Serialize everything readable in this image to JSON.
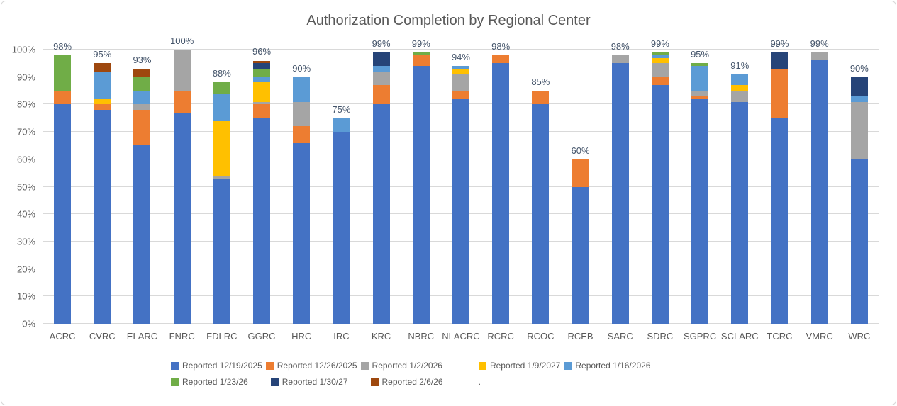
{
  "chart_data": {
    "type": "bar",
    "subtype": "stacked-column",
    "title": "Authorization Completion by Regional Center",
    "categories": [
      "ACRC",
      "CVRC",
      "ELARC",
      "FNRC",
      "FDLRC",
      "GGRC",
      "HRC",
      "IRC",
      "KRC",
      "NBRC",
      "NLACRC",
      "RCRC",
      "RCOC",
      "RCEB",
      "SARC",
      "SDRC",
      "SGPRC",
      "SCLARC",
      "TCRC",
      "VMRC",
      "WRC"
    ],
    "totals": [
      98,
      95,
      93,
      100,
      88,
      96,
      90,
      75,
      99,
      99,
      94,
      98,
      85,
      60,
      98,
      99,
      95,
      91,
      99,
      99,
      90
    ],
    "totals_labels": [
      "98%",
      "95%",
      "93%",
      "100%",
      "88%",
      "96%",
      "90%",
      "75%",
      "99%",
      "99%",
      "94%",
      "98%",
      "85%",
      "60%",
      "98%",
      "99%",
      "95%",
      "91%",
      "99%",
      "99%",
      "90%"
    ],
    "series": [
      {
        "name": "Reported 12/19/2025",
        "color": "#4472C4",
        "values": [
          80,
          78,
          65,
          77,
          53,
          75,
          66,
          70,
          80,
          94,
          82,
          95,
          80,
          50,
          95,
          87,
          82,
          81,
          75,
          96,
          60
        ]
      },
      {
        "name": "Reported 12/26/2025",
        "color": "#ED7D31",
        "values": [
          5,
          2,
          13,
          8,
          0,
          5,
          6,
          0,
          7,
          4,
          3,
          3,
          5,
          10,
          0,
          3,
          1,
          0,
          18,
          0,
          0
        ]
      },
      {
        "name": "Reported 1/2/2026",
        "color": "#A5A5A5",
        "values": [
          0,
          0,
          2,
          15,
          1,
          1,
          9,
          0,
          5,
          0,
          6,
          0,
          0,
          0,
          3,
          5,
          2,
          4,
          0,
          3,
          21
        ]
      },
      {
        "name": "Reported 1/9/2027",
        "color": "#FFC000",
        "values": [
          0,
          2,
          0,
          0,
          20,
          7,
          0,
          0,
          0,
          0,
          2,
          0,
          0,
          0,
          0,
          2,
          0,
          2,
          0,
          0,
          0
        ]
      },
      {
        "name": "Reported 1/16/2026",
        "color": "#5B9BD5",
        "values": [
          0,
          10,
          5,
          0,
          10,
          2,
          9,
          5,
          2,
          0,
          1,
          0,
          0,
          0,
          0,
          1,
          9,
          4,
          0,
          0,
          2
        ]
      },
      {
        "name": "Reported 1/23/26",
        "color": "#70AD47",
        "values": [
          13,
          0,
          5,
          0,
          4,
          3,
          0,
          0,
          0,
          1,
          0,
          0,
          0,
          0,
          0,
          1,
          1,
          0,
          0,
          0,
          0
        ]
      },
      {
        "name": "Reported 1/30/27",
        "color": "#264478",
        "values": [
          0,
          0,
          0,
          0,
          0,
          2,
          0,
          0,
          5,
          0,
          0,
          0,
          0,
          0,
          0,
          0,
          0,
          0,
          6,
          0,
          7
        ]
      },
      {
        "name": "Reported 2/6/26",
        "color": "#9E480E",
        "values": [
          0,
          3,
          3,
          0,
          0,
          1,
          0,
          0,
          0,
          0,
          0,
          0,
          0,
          0,
          0,
          0,
          0,
          0,
          0,
          0,
          0
        ]
      }
    ],
    "y_axis": {
      "min": 0,
      "max": 100,
      "tick_labels": [
        "0%",
        "10%",
        "20%",
        "30%",
        "40%",
        "50%",
        "60%",
        "70%",
        "80%",
        "90%",
        "100%"
      ],
      "grid": true
    },
    "legend": {
      "position": "bottom",
      "rows": [
        [
          0,
          1,
          2,
          3,
          4
        ],
        [
          5,
          6,
          7
        ]
      ],
      "trailing_text": "."
    },
    "colors": {
      "title_text": "#595959",
      "axis_text": "#595959",
      "data_label_text": "#44546A",
      "gridline": "#D9D9D9"
    }
  }
}
